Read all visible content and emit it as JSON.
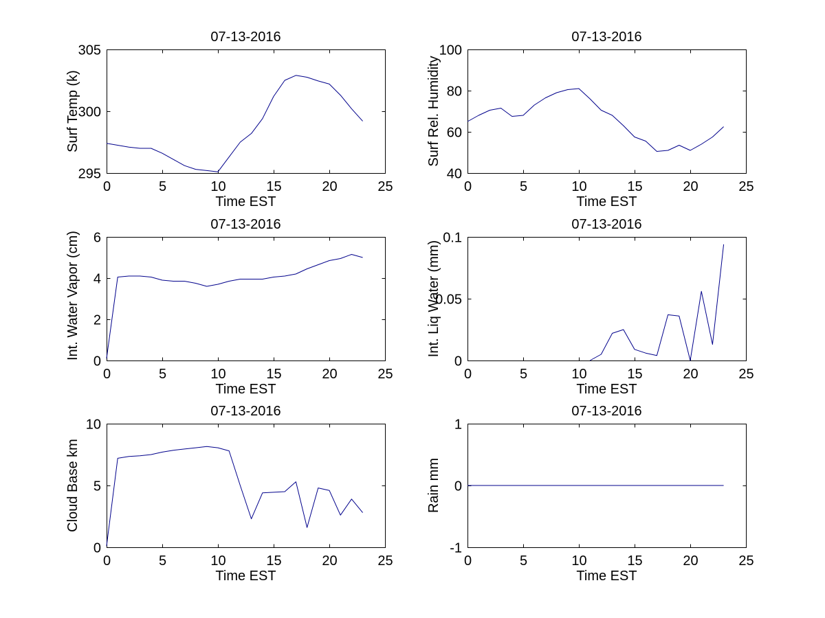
{
  "figure": {
    "background_color": "#ffffff",
    "axes_color": "#000000",
    "line_color": "#00008B"
  },
  "chart_data": [
    {
      "type": "line",
      "title": "07-13-2016",
      "xlabel": "Time EST",
      "ylabel": "Surf Temp (k)",
      "xlim": [
        0,
        25
      ],
      "ylim": [
        295,
        305
      ],
      "xticks": [
        0,
        5,
        10,
        15,
        20,
        25
      ],
      "yticks": [
        295,
        300,
        305
      ],
      "grid": false,
      "legend": "none",
      "line_color": "#00008B",
      "x": [
        0,
        1,
        2,
        3,
        4,
        5,
        6,
        7,
        8,
        9,
        10,
        11,
        12,
        13,
        14,
        15,
        16,
        17,
        18,
        19,
        20,
        21,
        22,
        23
      ],
      "y": [
        297.4,
        297.25,
        297.1,
        297.0,
        297.0,
        296.6,
        296.1,
        295.6,
        295.3,
        295.2,
        295.1,
        296.3,
        297.5,
        298.2,
        299.4,
        301.2,
        302.5,
        302.9,
        302.75,
        302.45,
        302.2,
        301.3,
        300.2,
        299.2
      ]
    },
    {
      "type": "line",
      "title": "07-13-2016",
      "xlabel": "Time EST",
      "ylabel": "Surf Rel. Humidity",
      "xlim": [
        0,
        25
      ],
      "ylim": [
        40,
        100
      ],
      "xticks": [
        0,
        5,
        10,
        15,
        20,
        25
      ],
      "yticks": [
        40,
        60,
        80,
        100
      ],
      "grid": false,
      "legend": "none",
      "line_color": "#00008B",
      "x": [
        0,
        1,
        2,
        3,
        4,
        5,
        6,
        7,
        8,
        9,
        10,
        11,
        12,
        13,
        14,
        15,
        16,
        17,
        18,
        19,
        20,
        21,
        22,
        23
      ],
      "y": [
        65,
        68,
        70.5,
        71.5,
        67.5,
        68,
        73,
        76.5,
        79,
        80.5,
        81,
        76,
        70.5,
        68,
        63,
        57.5,
        55.5,
        50.5,
        51,
        53.5,
        51,
        54,
        57.5,
        62.5
      ]
    },
    {
      "type": "line",
      "title": "07-13-2016",
      "xlabel": "Time EST",
      "ylabel": "Int. Water Vapor (cm)",
      "xlim": [
        0,
        25
      ],
      "ylim": [
        0,
        6
      ],
      "xticks": [
        0,
        5,
        10,
        15,
        20,
        25
      ],
      "yticks": [
        0,
        2,
        4,
        6
      ],
      "grid": false,
      "legend": "none",
      "line_color": "#00008B",
      "x": [
        0,
        1,
        2,
        3,
        4,
        5,
        6,
        7,
        8,
        9,
        10,
        11,
        12,
        13,
        14,
        15,
        16,
        17,
        18,
        19,
        20,
        21,
        22,
        23
      ],
      "y": [
        0.1,
        4.05,
        4.1,
        4.1,
        4.05,
        3.9,
        3.85,
        3.85,
        3.75,
        3.6,
        3.7,
        3.85,
        3.95,
        3.95,
        3.95,
        4.05,
        4.1,
        4.2,
        4.45,
        4.65,
        4.85,
        4.95,
        5.15,
        5.0
      ]
    },
    {
      "type": "line",
      "title": "07-13-2016",
      "xlabel": "Time EST",
      "ylabel": "Int. Liq Water (mm)",
      "xlim": [
        0,
        25
      ],
      "ylim": [
        0,
        0.1
      ],
      "xticks": [
        0,
        5,
        10,
        15,
        20,
        25
      ],
      "yticks": [
        0,
        0.05,
        0.1
      ],
      "grid": false,
      "legend": "none",
      "line_color": "#00008B",
      "x": [
        11,
        12,
        13,
        14,
        15,
        16,
        17,
        18,
        19,
        20,
        21,
        22,
        23
      ],
      "y": [
        0,
        0.005,
        0.022,
        0.025,
        0.009,
        0.006,
        0.004,
        0.037,
        0.036,
        0,
        0.056,
        0.013,
        0.094
      ]
    },
    {
      "type": "line",
      "title": "07-13-2016",
      "xlabel": "Time EST",
      "ylabel": "Cloud Base km",
      "xlim": [
        0,
        25
      ],
      "ylim": [
        0,
        10
      ],
      "xticks": [
        0,
        5,
        10,
        15,
        20,
        25
      ],
      "yticks": [
        0,
        5,
        10
      ],
      "grid": false,
      "legend": "none",
      "line_color": "#00008B",
      "x": [
        0,
        1,
        2,
        3,
        4,
        5,
        6,
        7,
        8,
        9,
        10,
        11,
        12,
        13,
        14,
        15,
        16,
        17,
        18,
        19,
        20,
        21,
        22,
        23
      ],
      "y": [
        0.1,
        7.2,
        7.35,
        7.4,
        7.5,
        7.7,
        7.85,
        7.95,
        8.05,
        8.15,
        8.05,
        7.8,
        5.0,
        2.3,
        4.4,
        4.45,
        4.5,
        5.3,
        1.6,
        4.8,
        4.6,
        2.6,
        3.9,
        2.8
      ]
    },
    {
      "type": "line",
      "title": "07-13-2016",
      "xlabel": "Time EST",
      "ylabel": "Rain mm",
      "xlim": [
        0,
        25
      ],
      "ylim": [
        -1,
        1
      ],
      "xticks": [
        0,
        5,
        10,
        15,
        20,
        25
      ],
      "yticks": [
        -1,
        0,
        1
      ],
      "grid": false,
      "legend": "none",
      "line_color": "#00008B",
      "x": [
        0,
        1,
        2,
        3,
        4,
        5,
        6,
        7,
        8,
        9,
        10,
        11,
        12,
        13,
        14,
        15,
        16,
        17,
        18,
        19,
        20,
        21,
        22,
        23
      ],
      "y": [
        0,
        0,
        0,
        0,
        0,
        0,
        0,
        0,
        0,
        0,
        0,
        0,
        0,
        0,
        0,
        0,
        0,
        0,
        0,
        0,
        0,
        0,
        0,
        0
      ]
    }
  ]
}
